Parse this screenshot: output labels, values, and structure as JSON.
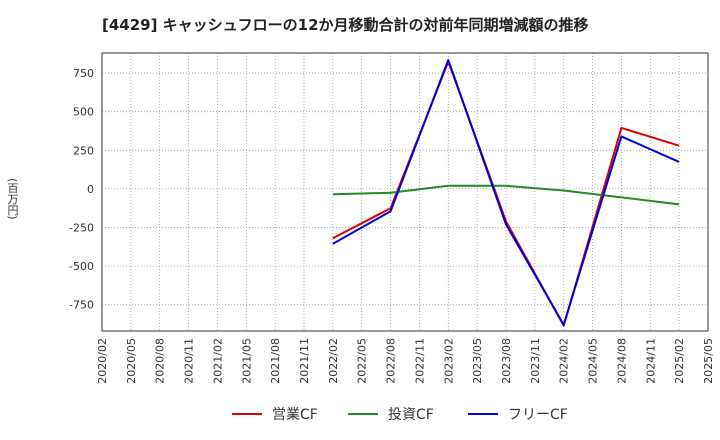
{
  "chart_data": {
    "type": "line",
    "title": "[4429]  キャッシュフローの12か月移動合計の対前年同期増減額の推移",
    "ylabel": "(百万円)",
    "xlabel": "",
    "ylim": [
      -920,
      880
    ],
    "yticks": [
      750,
      500,
      250,
      0,
      -250,
      -500,
      -750
    ],
    "ytick_labels": [
      "750",
      "500",
      "250",
      "0",
      "-250",
      "-500",
      "-750"
    ],
    "categories": [
      "2020/02",
      "2020/05",
      "2020/08",
      "2020/11",
      "2021/02",
      "2021/05",
      "2021/08",
      "2021/11",
      "2022/02",
      "2022/05",
      "2022/08",
      "2022/11",
      "2023/02",
      "2023/05",
      "2023/08",
      "2023/11",
      "2024/02",
      "2024/05",
      "2024/08",
      "2024/11",
      "2025/02",
      "2025/05"
    ],
    "series": [
      {
        "name": "営業CF",
        "color": "#dd0000",
        "values": [
          null,
          null,
          null,
          null,
          null,
          null,
          null,
          null,
          -320,
          null,
          -125,
          null,
          825,
          null,
          -210,
          null,
          -885,
          null,
          395,
          null,
          280,
          null
        ]
      },
      {
        "name": "投資CF",
        "color": "#228b22",
        "values": [
          null,
          null,
          null,
          null,
          null,
          null,
          null,
          null,
          -35,
          null,
          -25,
          null,
          20,
          null,
          20,
          null,
          -10,
          null,
          -55,
          null,
          -100,
          null
        ]
      },
      {
        "name": "フリーCF",
        "color": "#0000dd",
        "values": [
          null,
          null,
          null,
          null,
          null,
          null,
          null,
          null,
          -355,
          null,
          -145,
          null,
          835,
          null,
          -230,
          null,
          -880,
          null,
          340,
          null,
          175,
          null
        ]
      }
    ],
    "grid": true,
    "legend_position": "bottom-center"
  }
}
